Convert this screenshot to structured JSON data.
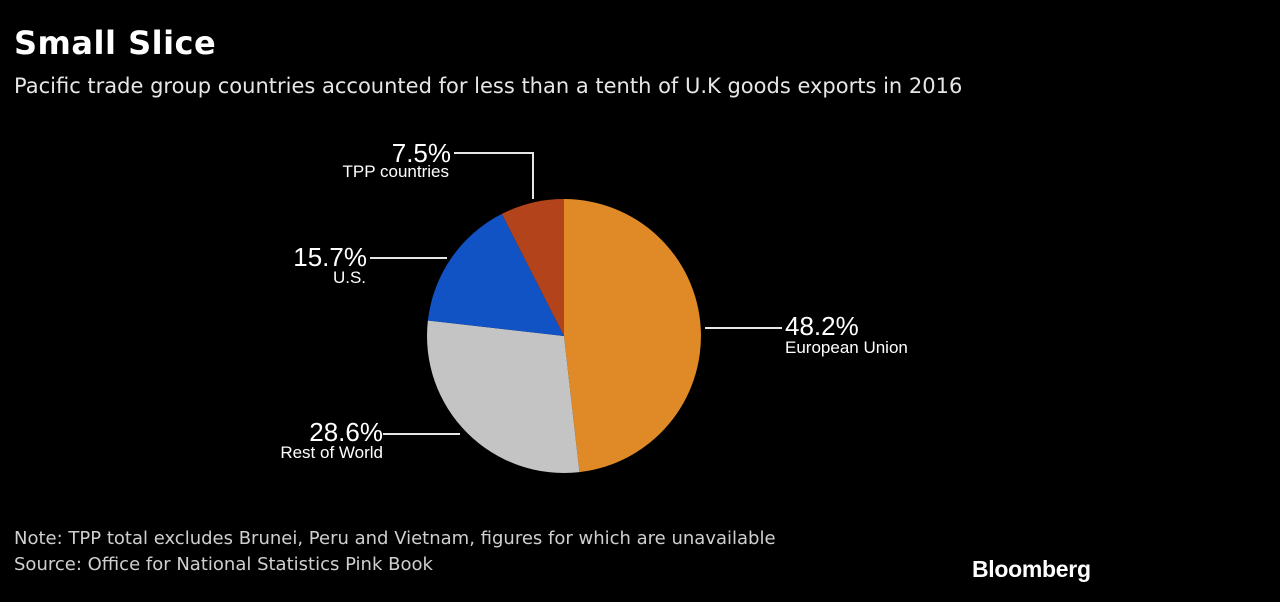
{
  "title": "Small Slice",
  "subtitle": "Pacific trade group countries accounted for less than a tenth of U.K goods exports in 2016",
  "note": "Note: TPP total excludes Brunei, Peru and Vietnam, figures for which are unavailable",
  "source": "Source: Office for National Statistics Pink Book",
  "brand": "Bloomberg",
  "chart_data": {
    "type": "pie",
    "slices": [
      {
        "label": "European Union",
        "value": 48.2,
        "value_label": "48.2%",
        "color": "#df8a26"
      },
      {
        "label": "Rest of World",
        "value": 28.6,
        "value_label": "28.6%",
        "color": "#c4c4c4"
      },
      {
        "label": "U.S.",
        "value": 15.7,
        "value_label": "15.7%",
        "color": "#1152c4"
      },
      {
        "label": "TPP countries",
        "value": 7.5,
        "value_label": "7.5%",
        "color": "#b3431b"
      }
    ]
  }
}
